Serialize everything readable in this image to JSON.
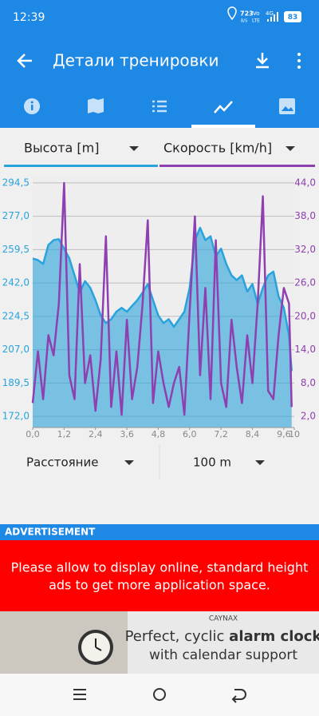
{
  "status_bar": {
    "time": "12:39",
    "net_speed": "723",
    "net_unit": "B/S",
    "volte_top": "Vo",
    "volte_bottom": "LTE",
    "network": "4G",
    "battery": "83"
  },
  "app_bar": {
    "title": "Детали тренировки"
  },
  "controls": {
    "x_axis": "Расстояние",
    "interval": "100 m"
  },
  "ad": {
    "header": "ADVERTISEMENT",
    "message_line1": "Please allow to display online, standard height",
    "message_line2": "ads to get more application space.",
    "brand": "CAYNAX",
    "headline_start": "Perfect, cyclic",
    "headline_bold": "alarm clock",
    "subline": "with calendar support"
  },
  "chart_data": {
    "type": "line",
    "x": [
      0,
      0.2,
      0.4,
      0.6,
      0.8,
      1.0,
      1.2,
      1.4,
      1.6,
      1.8,
      2.0,
      2.2,
      2.4,
      2.6,
      2.8,
      3.0,
      3.2,
      3.4,
      3.6,
      3.8,
      4.0,
      4.2,
      4.4,
      4.6,
      4.8,
      5.0,
      5.2,
      5.4,
      5.6,
      5.8,
      6.0,
      6.2,
      6.4,
      6.6,
      6.8,
      7.0,
      7.2,
      7.4,
      7.6,
      7.8,
      8.0,
      8.2,
      8.4,
      8.6,
      8.8,
      9.0,
      9.2,
      9.4,
      9.6,
      9.8,
      9.9
    ],
    "series": [
      {
        "name": "Высота [m]",
        "color": "#29a3dc",
        "area": true,
        "values": [
          254.9,
          254,
          252,
          262,
          264.5,
          265,
          260,
          255,
          246,
          237,
          243,
          239.5,
          233,
          225,
          221,
          223,
          227,
          229,
          227,
          230,
          233,
          237,
          241.5,
          233,
          225,
          221,
          223,
          219,
          223,
          227,
          239.5,
          264.5,
          271,
          264.5,
          266.5,
          256,
          260,
          252,
          246,
          243.5,
          246,
          237.5,
          241.5,
          231,
          239.5,
          246,
          248,
          235,
          229,
          214.5,
          195.8
        ]
      },
      {
        "name": "Скорость [km/h]",
        "color": "#8e3fb0",
        "axis": "y2",
        "values": [
          4.4,
          13.7,
          5.1,
          16.6,
          13,
          22.3,
          44,
          9.4,
          5.1,
          29.4,
          8,
          13,
          3,
          12.3,
          34.4,
          3.7,
          13.7,
          2.3,
          19.4,
          5.1,
          10.9,
          22.3,
          37.3,
          4.4,
          13.7,
          8,
          3.7,
          8,
          10.9,
          2.3,
          20.9,
          38,
          9.4,
          25.1,
          5.1,
          33.7,
          8,
          3.7,
          19.4,
          10.9,
          4.4,
          16.6,
          8,
          22.3,
          41.6,
          6.6,
          5.1,
          16.6,
          25.1,
          22.3,
          3.7
        ]
      }
    ],
    "xlim": [
      0,
      10
    ],
    "xticks": [
      {
        "value": 0,
        "label": "0,0"
      },
      {
        "value": 1.2,
        "label": "1,2"
      },
      {
        "value": 2.4,
        "label": "2,4"
      },
      {
        "value": 3.6,
        "label": "3,6"
      },
      {
        "value": 4.8,
        "label": "4,8"
      },
      {
        "value": 6.0,
        "label": "6,0"
      },
      {
        "value": 7.2,
        "label": "7,2"
      },
      {
        "value": 8.4,
        "label": "8,4"
      },
      {
        "value": 9.6,
        "label": "9,6"
      },
      10
    ],
    "ylim": [
      166.2,
      297.4
    ],
    "yticks": [
      {
        "value": 172.0,
        "label": "172,0"
      },
      {
        "value": 189.5,
        "label": "189,5"
      },
      {
        "value": 207.0,
        "label": "207,0"
      },
      {
        "value": 224.5,
        "label": "224,5"
      },
      {
        "value": 242.0,
        "label": "242,0"
      },
      {
        "value": 259.5,
        "label": "259,5"
      },
      {
        "value": 277.0,
        "label": "277,0"
      },
      {
        "value": 294.5,
        "label": "294,5"
      }
    ],
    "y2lim": [
      0,
      45
    ],
    "y2ticks": [
      {
        "value": 2,
        "label": "2,0"
      },
      {
        "value": 8,
        "label": "8,0"
      },
      {
        "value": 14,
        "label": "14,0"
      },
      {
        "value": 20,
        "label": "20,0"
      },
      {
        "value": 26,
        "label": "26,0"
      },
      {
        "value": 32,
        "label": "32,0"
      },
      {
        "value": 38,
        "label": "38,0"
      },
      {
        "value": 44,
        "label": "44,0"
      }
    ],
    "grid": true
  }
}
